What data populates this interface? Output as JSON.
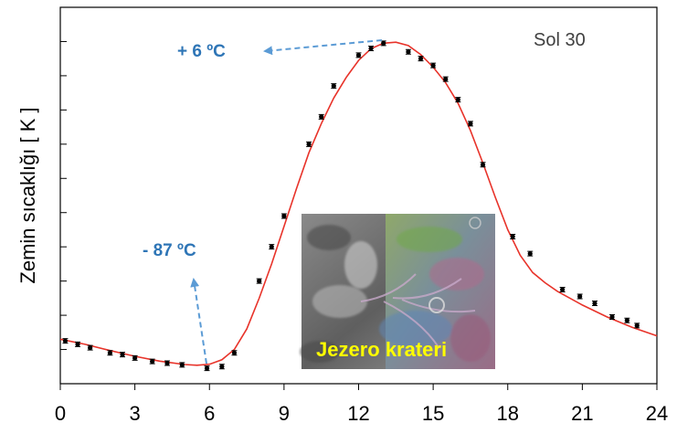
{
  "chart_data": {
    "type": "scatter",
    "xlabel": "",
    "ylabel": "Zemin sıcaklığı  [ K ]",
    "xlim": [
      0,
      24
    ],
    "ylim": [
      180,
      290
    ],
    "x_ticks": [
      "0",
      "3",
      "6",
      "9",
      "12",
      "15",
      "18",
      "21",
      "24"
    ],
    "sol_label": "Sol 30",
    "annotations": [
      {
        "text": "+ 6 ºC",
        "points_to": [
          13.2,
          279.5
        ]
      },
      {
        "text": "- 87 ºC",
        "points_to": [
          6.0,
          186.5
        ]
      }
    ],
    "inset_label": "Jezero krateri",
    "colors": {
      "model": "#e8332a",
      "arrow": "#5b9bd5",
      "annotation": "#2e75b6",
      "inset_label": "#ffff00"
    },
    "series": [
      {
        "style": "points",
        "x": [
          0.2,
          0.7,
          1.2,
          2.0,
          2.5,
          3.0,
          3.7,
          4.3,
          4.9,
          5.9,
          6.5,
          7.0,
          8.0,
          8.5,
          9.0,
          10.0,
          10.5,
          11.0,
          12.0,
          12.5,
          13.0,
          14.0,
          14.5,
          15.0,
          15.5,
          16.0,
          16.5,
          17.0,
          18.2,
          18.9,
          20.2,
          20.9,
          21.5,
          22.2,
          22.8,
          23.2
        ],
        "y": [
          192.5,
          191.5,
          190.5,
          189.0,
          188.5,
          187.5,
          186.5,
          186.0,
          185.5,
          184.5,
          185.0,
          189.0,
          210.0,
          220.0,
          229.0,
          250.0,
          258.0,
          267.0,
          276.0,
          278.0,
          279.5,
          277.0,
          275.0,
          273.0,
          269.0,
          263.0,
          256.0,
          244.0,
          223.0,
          218.0,
          207.5,
          205.5,
          203.5,
          199.5,
          198.5,
          197.0
        ]
      },
      {
        "style": "line",
        "x": [
          0,
          1,
          2,
          3,
          4,
          5,
          5.5,
          6,
          6.5,
          7,
          7.5,
          8,
          8.5,
          9,
          9.5,
          10,
          10.5,
          11,
          11.5,
          12,
          12.5,
          13,
          13.5,
          14,
          14.5,
          15,
          15.5,
          16,
          16.5,
          17,
          17.5,
          18,
          18.5,
          19,
          19.5,
          20,
          21,
          22,
          23,
          24
        ],
        "y": [
          193.0,
          191.5,
          189.7,
          188.0,
          186.6,
          185.6,
          185.4,
          185.7,
          187.0,
          190.0,
          196.0,
          205.0,
          215.0,
          226.0,
          237.0,
          247.5,
          256.0,
          263.5,
          269.5,
          274.5,
          277.9,
          279.5,
          279.8,
          278.8,
          276.2,
          272.5,
          268.0,
          262.0,
          254.0,
          244.5,
          234.5,
          225.0,
          217.5,
          212.5,
          209.5,
          207.0,
          203.0,
          199.5,
          196.5,
          194.0
        ]
      }
    ]
  }
}
